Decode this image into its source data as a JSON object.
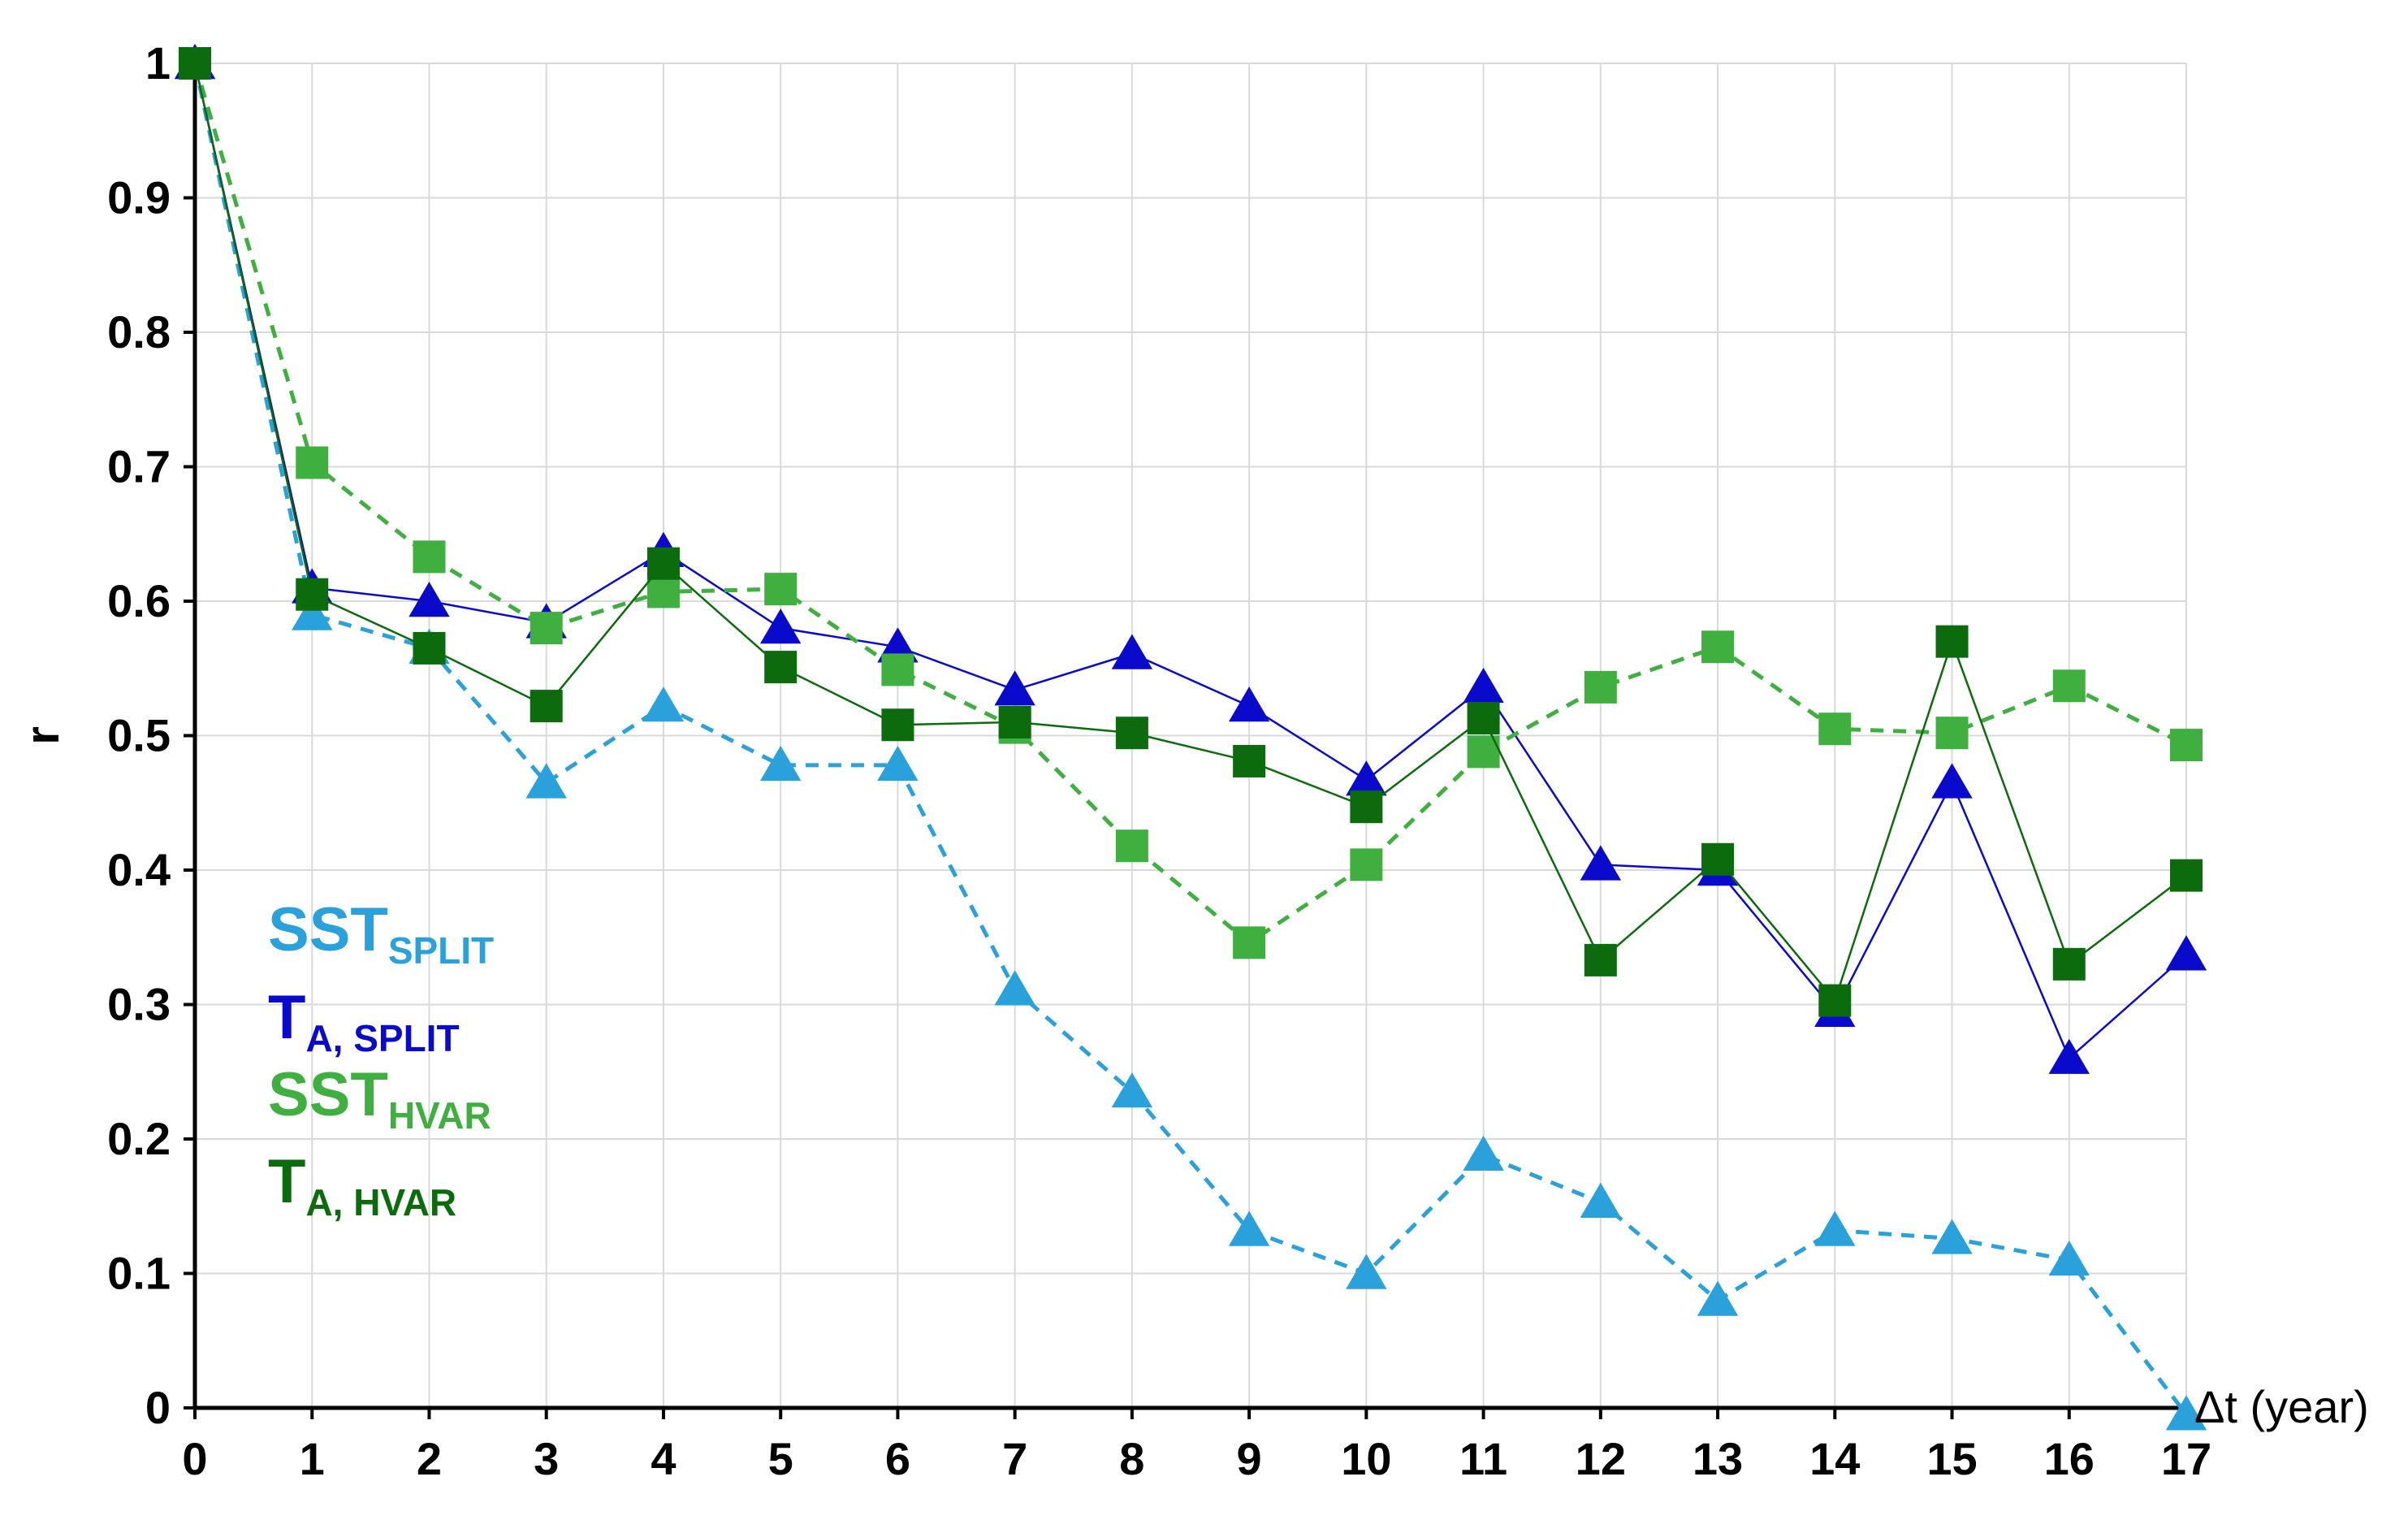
{
  "chart_data": {
    "type": "line",
    "title": "",
    "xlabel": "Δt (year)",
    "ylabel": "r",
    "xlim": [
      0,
      17
    ],
    "ylim": [
      0,
      1
    ],
    "x": [
      0,
      1,
      2,
      3,
      4,
      5,
      6,
      7,
      8,
      9,
      10,
      11,
      12,
      13,
      14,
      15,
      16,
      17
    ],
    "x_ticks": [
      "0",
      "1",
      "2",
      "3",
      "4",
      "5",
      "6",
      "7",
      "8",
      "9",
      "10",
      "11",
      "12",
      "13",
      "14",
      "15",
      "16",
      "17"
    ],
    "y_ticks": [
      {
        "value": 0,
        "label": "0"
      },
      {
        "value": 0.1,
        "label": "0.1"
      },
      {
        "value": 0.2,
        "label": "0.2"
      },
      {
        "value": 0.3,
        "label": "0.3"
      },
      {
        "value": 0.4,
        "label": "0.4"
      },
      {
        "value": 0.5,
        "label": "0.5"
      },
      {
        "value": 0.6,
        "label": "0.6"
      },
      {
        "value": 0.7,
        "label": "0.7"
      },
      {
        "value": 0.8,
        "label": "0.8"
      },
      {
        "value": 0.9,
        "label": "0.9"
      },
      {
        "value": 1,
        "label": "1"
      }
    ],
    "grid": true,
    "legend_position": "bottom-left",
    "series": [
      {
        "key": "sst-split",
        "name": "SST",
        "name_sub": "SPLIT",
        "color": "#2aa1da",
        "marker": "triangle",
        "line": "dashed",
        "values": [
          1.0,
          0.59,
          0.565,
          0.465,
          0.522,
          0.478,
          0.478,
          0.311,
          0.235,
          0.132,
          0.1,
          0.188,
          0.153,
          0.08,
          0.132,
          0.126,
          0.11,
          -0.005
        ]
      },
      {
        "key": "ta-split",
        "name": "T",
        "name_sub": "A, SPLIT",
        "color": "#0a0acd",
        "marker": "triangle",
        "line": "solid",
        "values": [
          1.0,
          0.61,
          0.6,
          0.584,
          0.637,
          0.58,
          0.566,
          0.534,
          0.561,
          0.522,
          0.467,
          0.536,
          0.404,
          0.4,
          0.295,
          0.465,
          0.26,
          0.337
        ]
      },
      {
        "key": "sst-hvar",
        "name": "SST",
        "name_sub": "HVAR",
        "color": "#3fb03f",
        "marker": "square",
        "line": "dashed",
        "values": [
          1.0,
          0.703,
          0.633,
          0.58,
          0.607,
          0.609,
          0.549,
          0.506,
          0.418,
          0.346,
          0.404,
          0.488,
          0.536,
          0.566,
          0.505,
          0.502,
          0.537,
          0.493
        ]
      },
      {
        "key": "ta-hvar",
        "name": "T",
        "name_sub": "A, HVAR",
        "color": "#0c6b0c",
        "marker": "square",
        "line": "solid",
        "values": [
          1.0,
          0.605,
          0.565,
          0.522,
          0.628,
          0.551,
          0.508,
          0.51,
          0.502,
          0.481,
          0.447,
          0.513,
          0.333,
          0.408,
          0.303,
          0.57,
          0.33,
          0.396
        ]
      }
    ]
  }
}
